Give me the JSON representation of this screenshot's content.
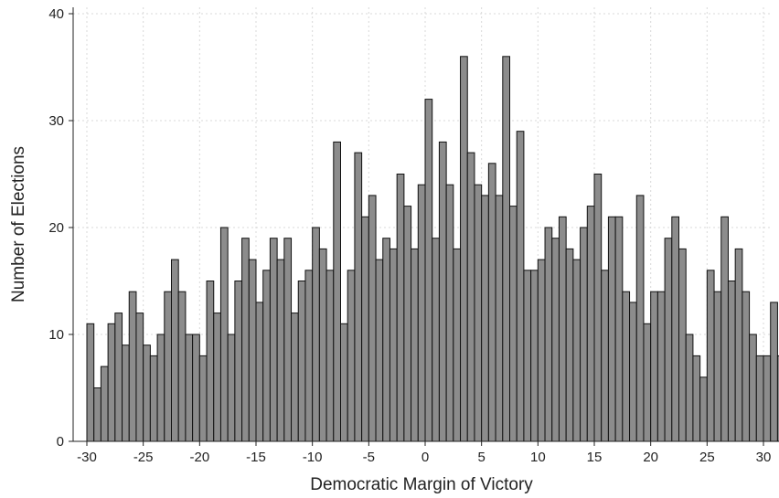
{
  "colors": {
    "bar_fill": "#8c8c8c",
    "bar_stroke": "#111111",
    "grid": "#d9d9d9",
    "axis": "#222222"
  },
  "chart_data": {
    "type": "bar",
    "title": "",
    "xlabel": "Democratic Margin of Victory",
    "ylabel": "Number of Elections",
    "xlim": [
      -30,
      30
    ],
    "ylim": [
      0,
      40
    ],
    "bin_width": 0.625,
    "grid": true,
    "x_ticks": [
      -30,
      -25,
      -20,
      -15,
      -10,
      -5,
      0,
      5,
      10,
      15,
      20,
      25,
      30
    ],
    "y_ticks": [
      0,
      10,
      20,
      30,
      40
    ],
    "x_tick_labels": [
      "-30",
      "-25",
      "-20",
      "-15",
      "-10",
      "-5",
      "0",
      "5",
      "10",
      "15",
      "20",
      "25",
      "30"
    ],
    "y_tick_labels": [
      "0",
      "10",
      "20",
      "30",
      "40"
    ],
    "values": [
      11,
      5,
      7,
      11,
      12,
      9,
      14,
      12,
      9,
      8,
      10,
      14,
      17,
      14,
      10,
      10,
      8,
      15,
      12,
      20,
      10,
      15,
      19,
      17,
      13,
      16,
      19,
      17,
      19,
      12,
      15,
      16,
      20,
      18,
      16,
      28,
      11,
      16,
      27,
      21,
      23,
      17,
      19,
      18,
      25,
      22,
      18,
      24,
      32,
      19,
      28,
      24,
      18,
      36,
      27,
      24,
      23,
      26,
      23,
      36,
      22,
      29,
      16,
      16,
      17,
      20,
      19,
      21,
      18,
      17,
      20,
      22,
      25,
      16,
      21,
      21,
      14,
      13,
      23,
      11,
      14,
      14,
      19,
      21,
      18,
      10,
      8,
      6,
      16,
      14,
      21,
      15,
      18,
      14,
      10,
      8,
      8,
      13,
      8,
      13
    ]
  }
}
